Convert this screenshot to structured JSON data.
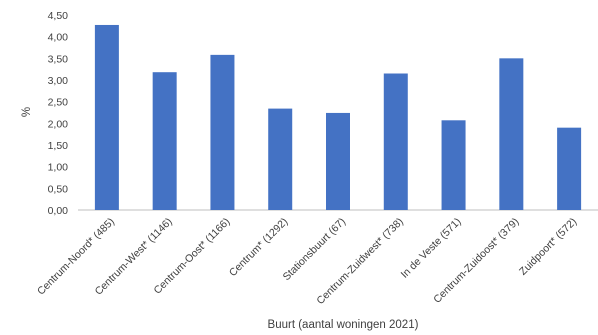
{
  "chart_data": {
    "type": "bar",
    "categories": [
      "Centrum-Noord* (485)",
      "Centrum-West* (1146)",
      "Centrum-Oost* (1166)",
      "Centrum* (1292)",
      "Stationsbuurt (67)",
      "Centrum-Zuidwest* (738)",
      "In de Veste (571)",
      "Centrum-Zuidoost* (379)",
      "Zuidpoort* (572)"
    ],
    "values": [
      4.27,
      3.18,
      3.58,
      2.34,
      2.24,
      3.15,
      2.07,
      3.5,
      1.9
    ],
    "xlabel": "Buurt (aantal woningen 2021)",
    "ylabel": "%",
    "ylim": [
      0,
      4.5
    ],
    "yticks": [
      "0,00",
      "0,50",
      "1,00",
      "1,50",
      "2,00",
      "2,50",
      "3,00",
      "3,50",
      "4,00",
      "4,50"
    ],
    "grid": false,
    "legend": "none",
    "bar_color": "#4472c4"
  }
}
